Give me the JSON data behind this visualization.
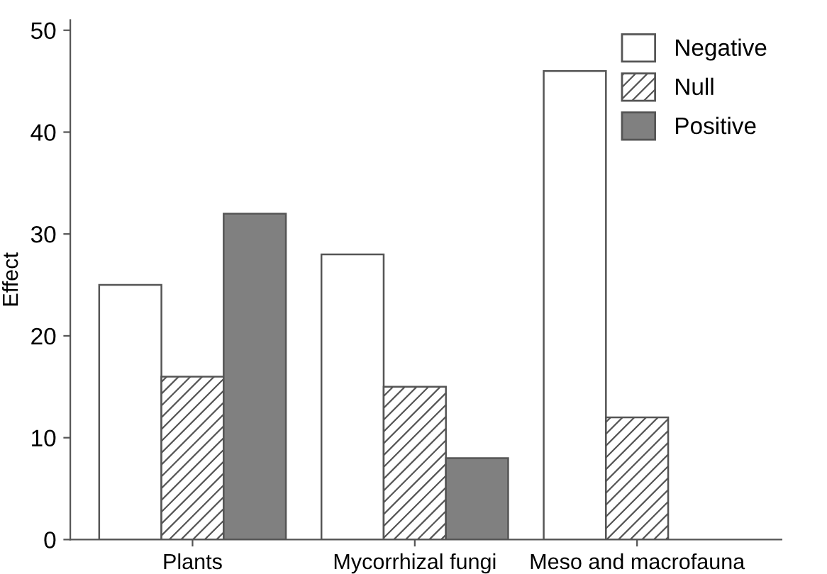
{
  "chart_data": {
    "type": "bar",
    "ylabel": "Effect",
    "categories": [
      "Plants",
      "Mycorrhizal fungi",
      "Meso and macrofauna"
    ],
    "series": [
      {
        "name": "Negative",
        "color": "#ffffff",
        "values": [
          25,
          28,
          46
        ]
      },
      {
        "name": "Null",
        "color": "#555555",
        "values": [
          16,
          15,
          12
        ]
      },
      {
        "name": "Positive",
        "color": "#808080",
        "values": [
          32,
          8,
          null
        ]
      }
    ],
    "ylim": [
      0,
      51
    ],
    "yticks": [
      0,
      10,
      20,
      30,
      40,
      50
    ],
    "grid": false,
    "legend": "top right"
  }
}
